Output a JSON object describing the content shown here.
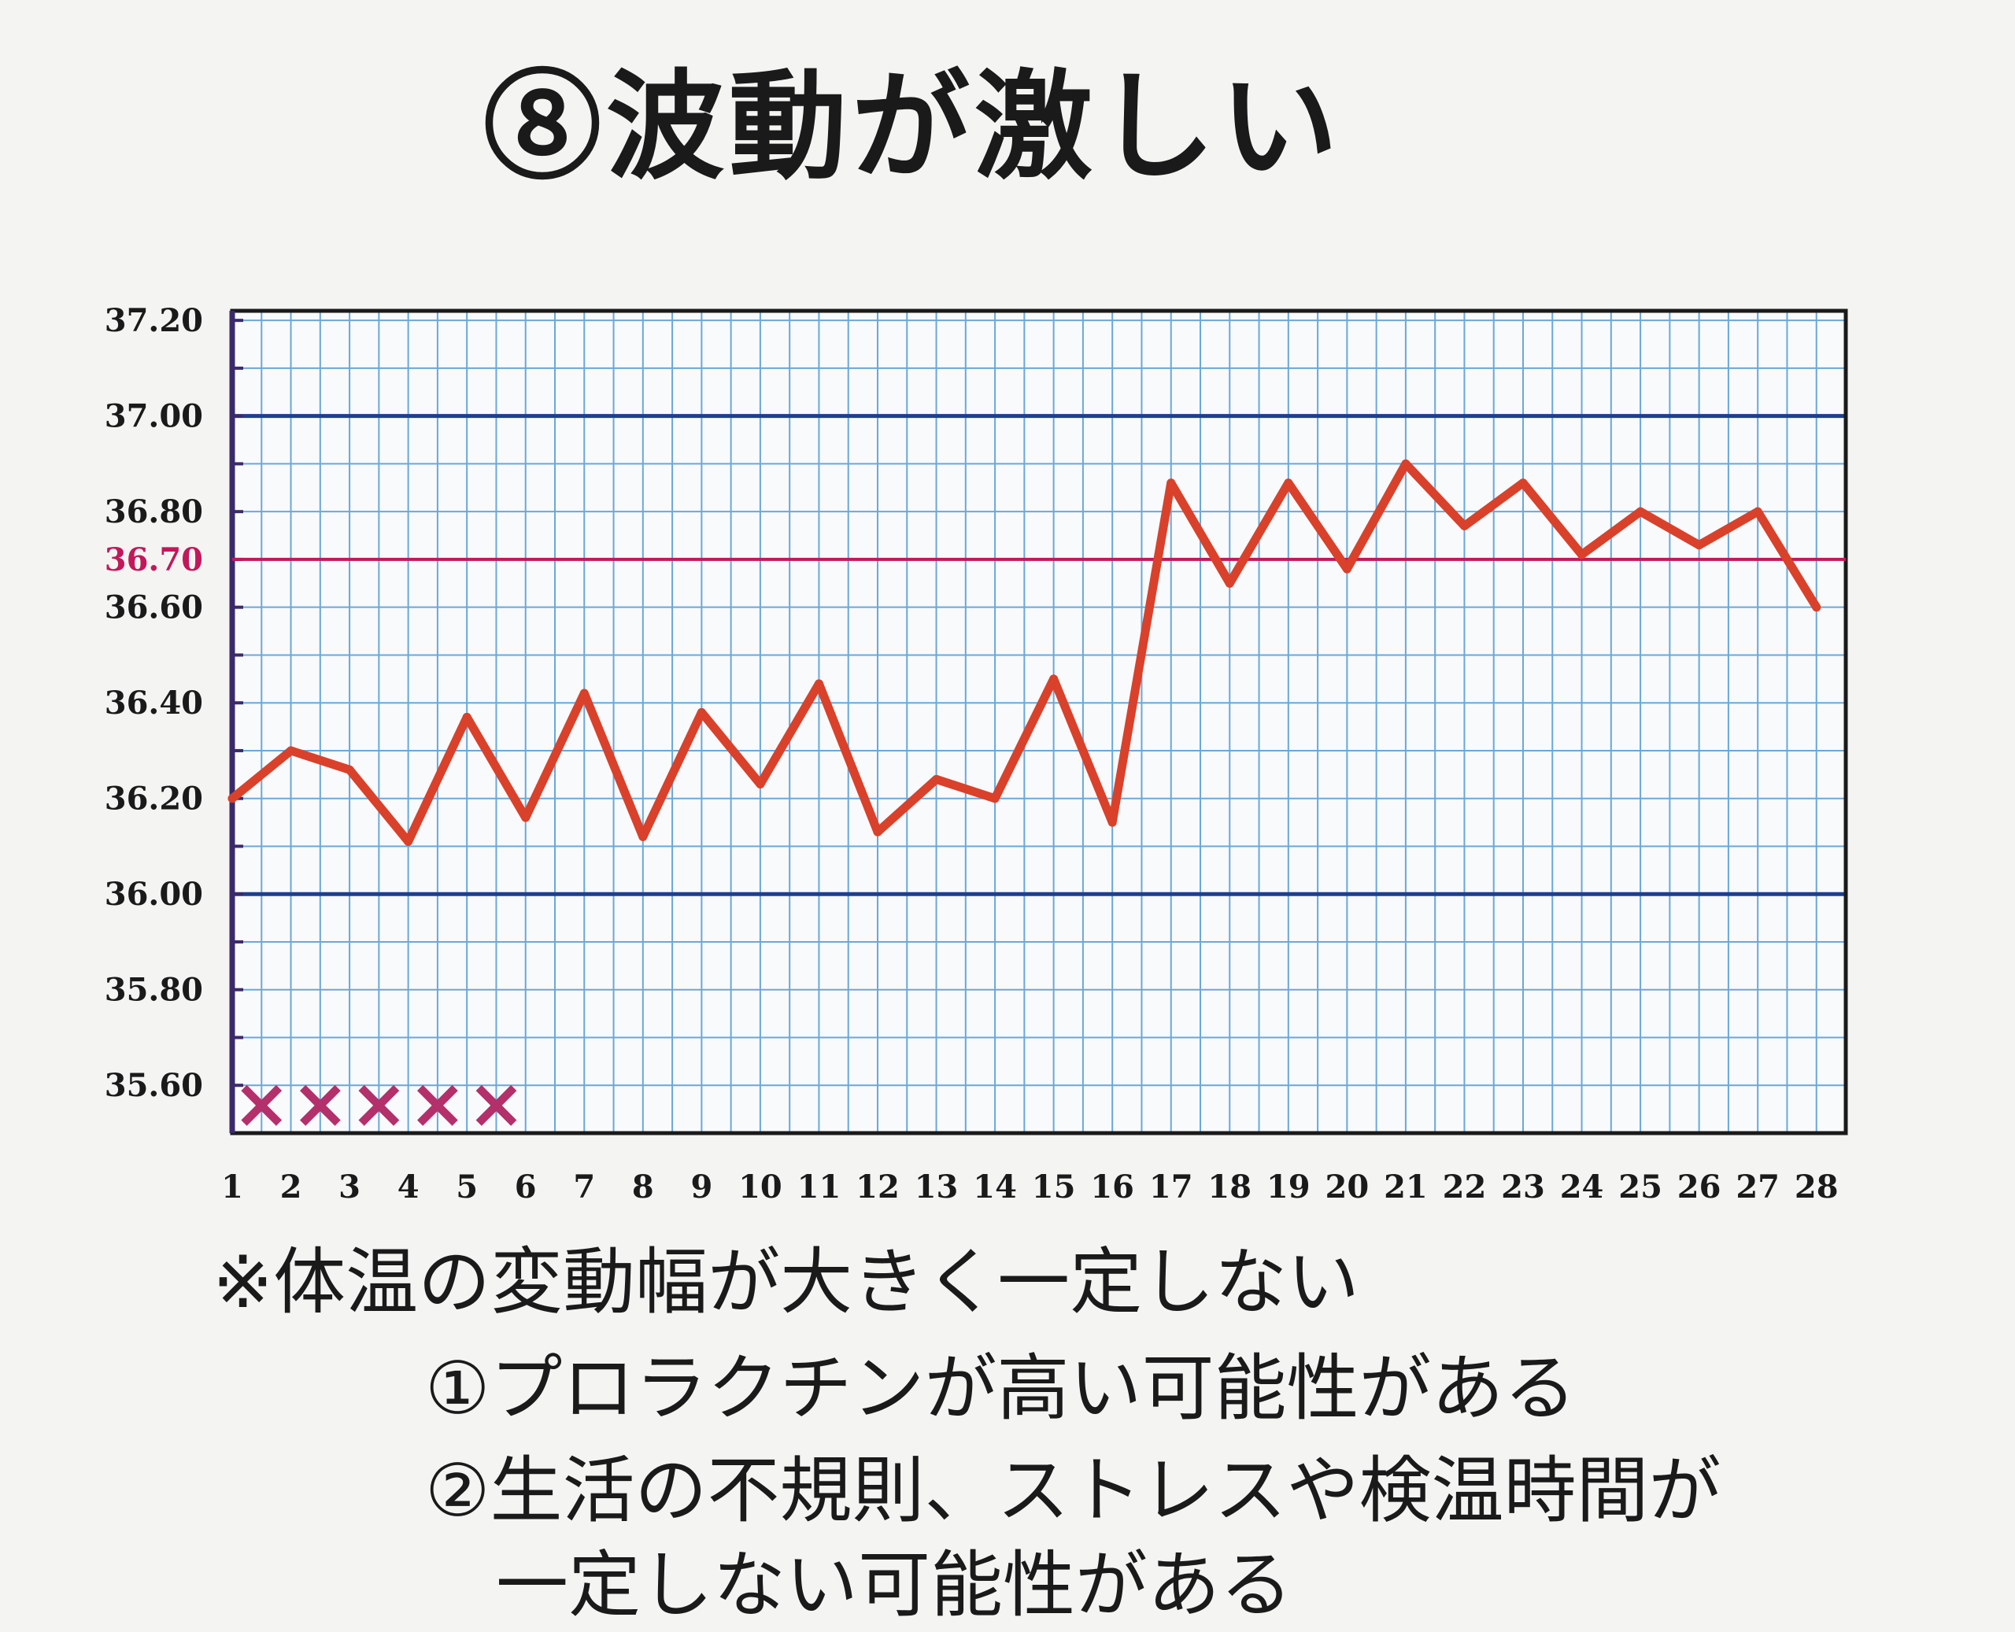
{
  "page": {
    "title": "⑧波動が激しい",
    "notes": {
      "main": "※体温の変動幅が大きく一定しない",
      "item1": "①プロラクチンが高い可能性がある",
      "item2_line1": "②生活の不規則、ストレスや検温時間が",
      "item2_line2": "一定しない可能性がある"
    }
  },
  "colors": {
    "line": "#d9412b",
    "reference": "#c2185b",
    "major_grid": "#1e3f8f",
    "minor_grid": "#6aa8d8",
    "marker": "#b3306b"
  },
  "chart_data": {
    "type": "line",
    "x": [
      1,
      2,
      3,
      4,
      5,
      6,
      7,
      8,
      9,
      10,
      11,
      12,
      13,
      14,
      15,
      16,
      17,
      18,
      19,
      20,
      21,
      22,
      23,
      24,
      25,
      26,
      27,
      28
    ],
    "x_tick_labels": [
      "1",
      "2",
      "3",
      "4",
      "5",
      "6",
      "7",
      "8",
      "9",
      "10",
      "11",
      "12",
      "13",
      "14",
      "15",
      "16",
      "17",
      "18",
      "19",
      "20",
      "21",
      "22",
      "23",
      "24",
      "25",
      "26",
      "27",
      "28"
    ],
    "y_tick_labels": [
      "37.20",
      "37.00",
      "36.80",
      "36.70",
      "36.60",
      "36.40",
      "36.20",
      "36.00",
      "35.80",
      "35.60"
    ],
    "y_ticks": [
      37.2,
      37.0,
      36.8,
      36.7,
      36.6,
      36.4,
      36.2,
      36.0,
      35.8,
      35.6
    ],
    "highlight_tick": "36.70",
    "ylim": [
      35.5,
      37.22
    ],
    "series": [
      {
        "values": [
          36.2,
          36.3,
          36.26,
          36.11,
          36.37,
          36.16,
          36.42,
          36.12,
          36.38,
          36.23,
          36.44,
          36.13,
          36.24,
          36.2,
          36.45,
          36.15,
          36.86,
          36.65,
          36.86,
          36.68,
          36.9,
          36.77,
          36.86,
          36.71,
          36.8,
          36.73,
          36.8,
          36.6
        ]
      }
    ],
    "reference_line": 36.7,
    "major_gridlines": [
      37.0,
      36.0
    ],
    "markers": {
      "symbol": "×",
      "x": [
        1.5,
        2.5,
        3.5,
        4.5,
        5.5
      ],
      "y": 35.555
    },
    "grid": true
  }
}
